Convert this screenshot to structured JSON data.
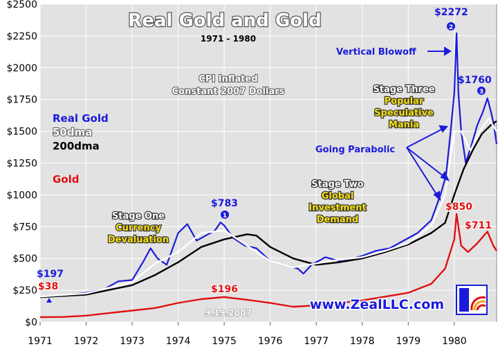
{
  "chart_data": {
    "type": "line",
    "title": "Real Gold and Gold",
    "subtitle": "1971 - 1980",
    "note_lines": [
      "CPI Inflated",
      "Constant 2007 Dollars"
    ],
    "date_stamp": "9.19.2007",
    "ylim": [
      0,
      2500
    ],
    "xlim": [
      1971,
      1980.92
    ],
    "y_ticks": [
      0,
      250,
      500,
      750,
      1000,
      1250,
      1500,
      1750,
      2000,
      2250,
      2500
    ],
    "y_tick_labels": [
      "$0",
      "$250",
      "$500",
      "$750",
      "$1000",
      "$1250",
      "$1500",
      "$1750",
      "$2000",
      "$2250",
      "$2500"
    ],
    "x_ticks": [
      1971,
      1972,
      1973,
      1974,
      1975,
      1976,
      1977,
      1978,
      1979,
      1980
    ],
    "x_tick_labels": [
      "1971",
      "1972",
      "1973",
      "1974",
      "1975",
      "1976",
      "1977",
      "1978",
      "1979",
      "1980"
    ],
    "legend": [
      {
        "label": "Real Gold",
        "color": "#1a1adc"
      },
      {
        "label": "50dma",
        "color": "#ffffff"
      },
      {
        "label": "200dma",
        "color": "#000000"
      },
      {
        "label": "Gold",
        "color": "#e01010"
      }
    ],
    "series": [
      {
        "name": "Real Gold",
        "color": "#1a1adc",
        "x": [
          1971.0,
          1971.5,
          1972.0,
          1972.4,
          1972.7,
          1973.0,
          1973.25,
          1973.4,
          1973.55,
          1973.75,
          1974.0,
          1974.2,
          1974.4,
          1974.6,
          1974.8,
          1974.92,
          1975.0,
          1975.2,
          1975.45,
          1975.7,
          1976.0,
          1976.3,
          1976.6,
          1976.72,
          1976.9,
          1977.2,
          1977.5,
          1977.8,
          1978.0,
          1978.3,
          1978.6,
          1978.9,
          1979.2,
          1979.5,
          1979.7,
          1979.82,
          1979.92,
          1980.0,
          1980.05,
          1980.09,
          1980.15,
          1980.25,
          1980.38,
          1980.5,
          1980.62,
          1980.72,
          1980.8,
          1980.86,
          1980.92
        ],
        "values": [
          197,
          210,
          230,
          260,
          320,
          330,
          480,
          580,
          500,
          450,
          700,
          770,
          640,
          680,
          720,
          783,
          760,
          660,
          600,
          580,
          480,
          450,
          420,
          380,
          450,
          510,
          480,
          500,
          520,
          560,
          580,
          640,
          700,
          800,
          1000,
          1150,
          1500,
          1800,
          2272,
          1800,
          1500,
          1250,
          1400,
          1550,
          1650,
          1760,
          1650,
          1550,
          1400
        ]
      },
      {
        "name": "50dma",
        "color": "#ffffff",
        "x": [
          1971.0,
          1972.0,
          1973.0,
          1973.5,
          1974.0,
          1974.5,
          1975.0,
          1975.5,
          1976.0,
          1976.5,
          1977.0,
          1977.5,
          1978.0,
          1978.5,
          1979.0,
          1979.5,
          1979.8,
          1980.0,
          1980.15,
          1980.35,
          1980.55,
          1980.75,
          1980.92
        ],
        "values": [
          200,
          225,
          315,
          460,
          550,
          700,
          720,
          600,
          480,
          430,
          460,
          490,
          510,
          560,
          620,
          760,
          1000,
          1500,
          1500,
          1350,
          1500,
          1600,
          1500
        ]
      },
      {
        "name": "200dma",
        "color": "#000000",
        "x": [
          1971.0,
          1972.0,
          1973.0,
          1973.5,
          1974.0,
          1974.5,
          1975.0,
          1975.5,
          1975.7,
          1976.0,
          1976.5,
          1977.0,
          1977.5,
          1978.0,
          1978.5,
          1979.0,
          1979.5,
          1979.8,
          1980.0,
          1980.2,
          1980.4,
          1980.6,
          1980.8,
          1980.92
        ],
        "values": [
          195,
          215,
          290,
          370,
          470,
          590,
          650,
          690,
          680,
          590,
          500,
          450,
          470,
          500,
          550,
          610,
          700,
          780,
          1000,
          1200,
          1350,
          1480,
          1550,
          1580
        ]
      },
      {
        "name": "Gold",
        "color": "#e01010",
        "x": [
          1971.0,
          1971.5,
          1972.0,
          1972.5,
          1973.0,
          1973.5,
          1974.0,
          1974.5,
          1975.0,
          1975.5,
          1976.0,
          1976.5,
          1977.0,
          1978.0,
          1979.0,
          1979.5,
          1979.8,
          1980.0,
          1980.05,
          1980.15,
          1980.3,
          1980.5,
          1980.72,
          1980.85,
          1980.92
        ],
        "values": [
          38,
          40,
          50,
          70,
          90,
          110,
          150,
          180,
          196,
          175,
          150,
          120,
          130,
          170,
          230,
          300,
          420,
          650,
          850,
          600,
          550,
          620,
          711,
          600,
          560
        ]
      }
    ],
    "annotations": {
      "stage_one": [
        "Stage One",
        "Currency",
        "Devaluation"
      ],
      "stage_two": [
        "Stage Two",
        "Global",
        "Investment",
        "Demand"
      ],
      "stage_three": [
        "Stage Three",
        "Popular",
        "Speculative",
        "Mania"
      ],
      "going_parabolic": "Going Parabolic",
      "vertical_blowoff": "Vertical Blowoff",
      "price_labels": [
        {
          "text": "$197",
          "x": 1971.0,
          "value": 197,
          "color": "#1a1adc"
        },
        {
          "text": "$38",
          "x": 1971.0,
          "value": 38,
          "color": "#e01010"
        },
        {
          "text": "$783",
          "x": 1974.92,
          "value": 783,
          "color": "#1a1adc"
        },
        {
          "text": "$196",
          "x": 1975.0,
          "value": 196,
          "color": "#e01010"
        },
        {
          "text": "$2272",
          "x": 1980.05,
          "value": 2272,
          "color": "#1a1adc"
        },
        {
          "text": "$1760",
          "x": 1980.72,
          "value": 1760,
          "color": "#1a1adc"
        },
        {
          "text": "$850",
          "x": 1980.05,
          "value": 850,
          "color": "#e01010"
        },
        {
          "text": "$711",
          "x": 1980.72,
          "value": 711,
          "color": "#e01010"
        }
      ],
      "markers": [
        "1",
        "2",
        "3"
      ]
    },
    "watermark": "www.ZealLLC.com"
  }
}
